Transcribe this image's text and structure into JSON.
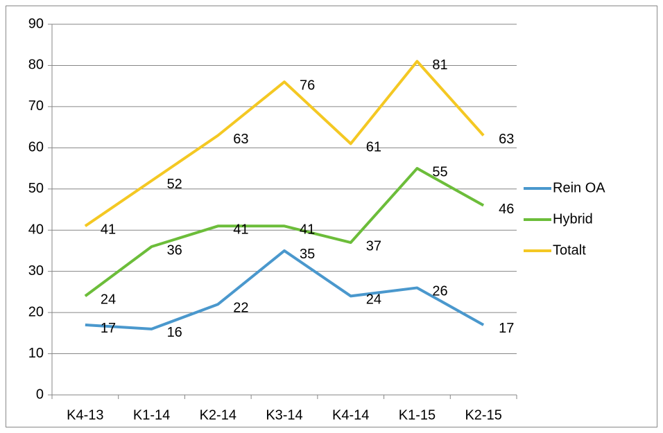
{
  "chart_data": {
    "type": "line",
    "categories": [
      "K4-13",
      "K1-14",
      "K2-14",
      "K3-14",
      "K4-14",
      "K1-15",
      "K2-15"
    ],
    "series": [
      {
        "name": "Rein OA",
        "color": "#4a98cd",
        "values": [
          17,
          16,
          22,
          35,
          24,
          26,
          17
        ]
      },
      {
        "name": "Hybrid",
        "color": "#6cbd3a",
        "values": [
          24,
          36,
          41,
          41,
          37,
          55,
          46
        ]
      },
      {
        "name": "Totalt",
        "color": "#f4c823",
        "values": [
          41,
          52,
          63,
          76,
          61,
          81,
          63
        ]
      }
    ],
    "ylim": [
      0,
      90
    ],
    "yticks": [
      0,
      10,
      20,
      30,
      40,
      50,
      60,
      70,
      80,
      90
    ],
    "grid": true,
    "legend": "right",
    "data_labels": true
  }
}
